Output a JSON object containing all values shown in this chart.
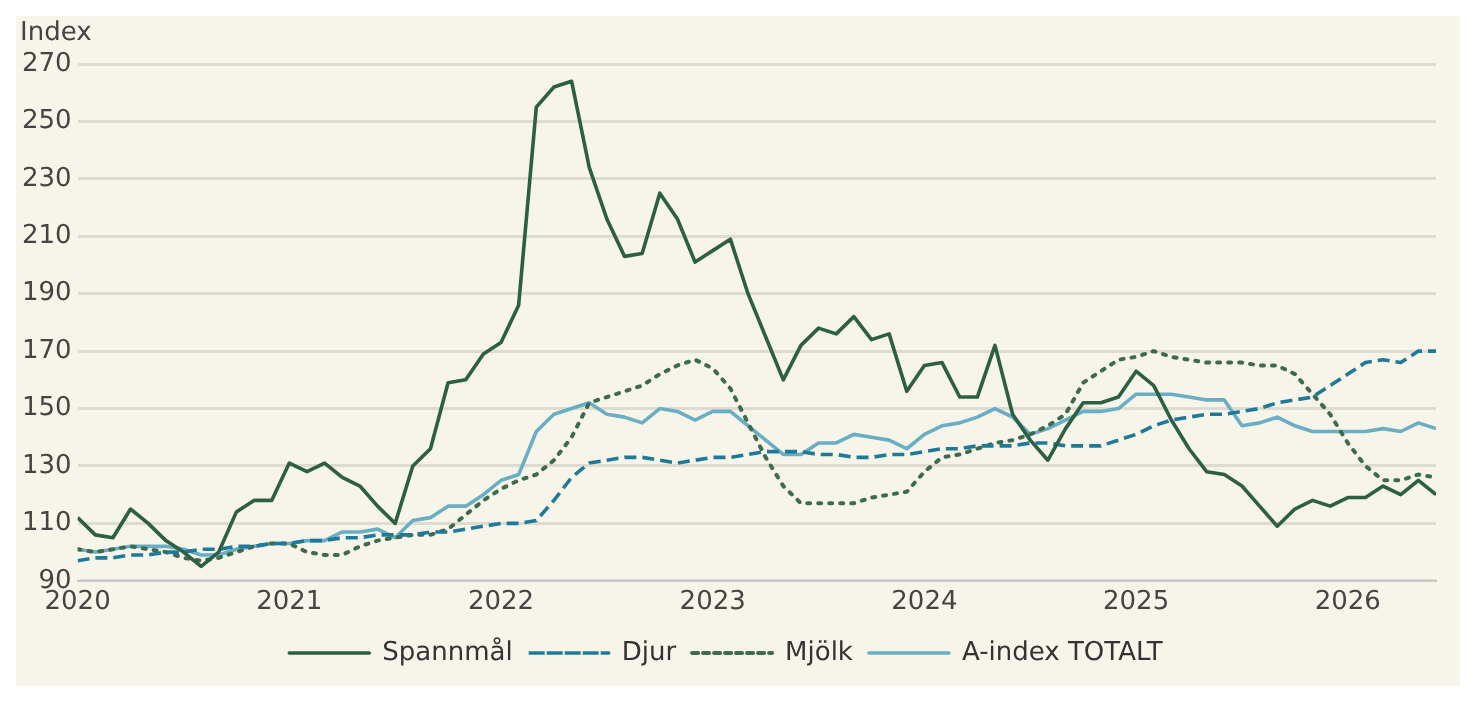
{
  "chart_data": {
    "type": "line",
    "ylabel": "Index",
    "x": [
      "2020-01",
      "2020-02",
      "2020-03",
      "2020-04",
      "2020-05",
      "2020-06",
      "2020-07",
      "2020-08",
      "2020-09",
      "2020-10",
      "2020-11",
      "2020-12",
      "2021-01",
      "2021-02",
      "2021-03",
      "2021-04",
      "2021-05",
      "2021-06",
      "2021-07",
      "2021-08",
      "2021-09",
      "2021-10",
      "2021-11",
      "2021-12",
      "2022-01",
      "2022-02",
      "2022-03",
      "2022-04",
      "2022-05",
      "2022-06",
      "2022-07",
      "2022-08",
      "2022-09",
      "2022-10",
      "2022-11",
      "2022-12",
      "2023-01",
      "2023-02",
      "2023-03",
      "2023-04",
      "2023-05",
      "2023-06",
      "2023-07",
      "2023-08",
      "2023-09",
      "2023-10",
      "2023-11",
      "2023-12",
      "2024-01",
      "2024-02",
      "2024-03",
      "2024-04",
      "2024-05",
      "2024-06",
      "2024-07",
      "2024-08",
      "2024-09",
      "2024-10",
      "2024-11",
      "2024-12",
      "2025-01",
      "2025-02",
      "2025-03",
      "2025-04",
      "2025-05",
      "2025-06",
      "2025-07",
      "2025-08",
      "2025-09",
      "2025-10",
      "2025-11",
      "2025-12",
      "2026-01",
      "2026-02",
      "2026-03",
      "2026-04",
      "2026-05",
      "2026-06"
    ],
    "series": [
      {
        "name": "Spannmål",
        "color": "#2d5e46",
        "line_style": "solid",
        "values": [
          112,
          106,
          105,
          115,
          110,
          104,
          100,
          95,
          100,
          114,
          118,
          118,
          131,
          128,
          131,
          126,
          123,
          116,
          110,
          130,
          136,
          159,
          160,
          169,
          173,
          186,
          255,
          262,
          264,
          234,
          216,
          203,
          204,
          225,
          216,
          201,
          205,
          209,
          190,
          175,
          160,
          172,
          178,
          176,
          182,
          174,
          176,
          156,
          165,
          166,
          154,
          154,
          172,
          148,
          139,
          132,
          143,
          152,
          152,
          154,
          163,
          158,
          146,
          136,
          128,
          127,
          123,
          116,
          109,
          115,
          118,
          116,
          119,
          119,
          123,
          120,
          125,
          120
        ]
      },
      {
        "name": "Djur",
        "color": "#1f7a99",
        "line_style": "dashed",
        "values": [
          97,
          98,
          98,
          99,
          99,
          100,
          100,
          101,
          101,
          102,
          102,
          103,
          103,
          104,
          104,
          105,
          105,
          106,
          106,
          106,
          107,
          107,
          108,
          109,
          110,
          110,
          111,
          118,
          126,
          131,
          132,
          133,
          133,
          132,
          131,
          132,
          133,
          133,
          134,
          135,
          135,
          135,
          134,
          134,
          133,
          133,
          134,
          134,
          135,
          136,
          136,
          137,
          137,
          137,
          138,
          138,
          137,
          137,
          137,
          139,
          141,
          144,
          146,
          147,
          148,
          148,
          149,
          150,
          152,
          153,
          154,
          158,
          162,
          166,
          167,
          166,
          170,
          170
        ]
      },
      {
        "name": "Mjölk",
        "color": "#3d6b50",
        "line_style": "dotted",
        "values": [
          101,
          100,
          101,
          102,
          101,
          100,
          98,
          97,
          98,
          100,
          102,
          103,
          103,
          100,
          99,
          99,
          102,
          104,
          105,
          106,
          106,
          108,
          113,
          118,
          122,
          125,
          127,
          132,
          140,
          152,
          154,
          156,
          158,
          162,
          165,
          167,
          164,
          157,
          145,
          133,
          123,
          117,
          117,
          117,
          117,
          119,
          120,
          121,
          128,
          133,
          134,
          136,
          138,
          139,
          141,
          144,
          148,
          159,
          163,
          167,
          168,
          170,
          168,
          167,
          166,
          166,
          166,
          165,
          165,
          162,
          155,
          148,
          138,
          130,
          125,
          125,
          127,
          126
        ]
      },
      {
        "name": "A-index TOTALT",
        "color": "#6aaec4",
        "line_style": "solid",
        "values": [
          101,
          100,
          101,
          102,
          102,
          102,
          101,
          99,
          99,
          101,
          102,
          103,
          103,
          104,
          104,
          107,
          107,
          108,
          105,
          111,
          112,
          116,
          116,
          120,
          125,
          127,
          142,
          148,
          150,
          152,
          148,
          147,
          145,
          150,
          149,
          146,
          149,
          149,
          144,
          139,
          134,
          134,
          138,
          138,
          141,
          140,
          139,
          136,
          141,
          144,
          145,
          147,
          150,
          147,
          141,
          143,
          146,
          149,
          149,
          150,
          155,
          155,
          155,
          154,
          153,
          153,
          144,
          145,
          147,
          144,
          142,
          142,
          142,
          142,
          143,
          142,
          145,
          143
        ]
      }
    ],
    "xlim": [
      "2020-01",
      "2026-06"
    ],
    "xticks": [
      "2020",
      "2021",
      "2022",
      "2023",
      "2024",
      "2025",
      "2026"
    ],
    "ylim": [
      90,
      270
    ],
    "yticks": [
      90,
      110,
      130,
      150,
      170,
      190,
      210,
      230,
      250,
      270
    ],
    "grid": "y",
    "legend": "bottom",
    "marker": "none"
  }
}
